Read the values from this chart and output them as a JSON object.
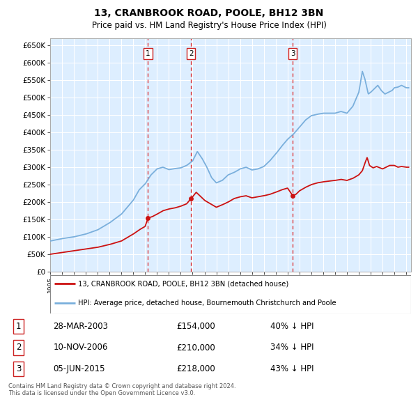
{
  "title": "13, CRANBROOK ROAD, POOLE, BH12 3BN",
  "subtitle": "Price paid vs. HM Land Registry's House Price Index (HPI)",
  "plot_background": "#ddeeff",
  "grid_color": "#ffffff",
  "ylim": [
    0,
    670000
  ],
  "yticks": [
    0,
    50000,
    100000,
    150000,
    200000,
    250000,
    300000,
    350000,
    400000,
    450000,
    500000,
    550000,
    600000,
    650000
  ],
  "ytick_labels": [
    "£0",
    "£50K",
    "£100K",
    "£150K",
    "£200K",
    "£250K",
    "£300K",
    "£350K",
    "£400K",
    "£450K",
    "£500K",
    "£550K",
    "£600K",
    "£650K"
  ],
  "xlim_start": 1995.0,
  "xlim_end": 2025.4,
  "sales": [
    {
      "date_decimal": 2003.24,
      "price": 154000,
      "label": "1"
    },
    {
      "date_decimal": 2006.86,
      "price": 210000,
      "label": "2"
    },
    {
      "date_decimal": 2015.43,
      "price": 218000,
      "label": "3"
    }
  ],
  "hpi_anchors": [
    [
      1995.0,
      88000
    ],
    [
      1996.0,
      95000
    ],
    [
      1997.0,
      100000
    ],
    [
      1998.0,
      108000
    ],
    [
      1999.0,
      120000
    ],
    [
      2000.0,
      140000
    ],
    [
      2001.0,
      165000
    ],
    [
      2002.0,
      205000
    ],
    [
      2002.5,
      235000
    ],
    [
      2003.0,
      252000
    ],
    [
      2003.5,
      278000
    ],
    [
      2004.0,
      295000
    ],
    [
      2004.5,
      300000
    ],
    [
      2005.0,
      293000
    ],
    [
      2005.5,
      296000
    ],
    [
      2006.0,
      298000
    ],
    [
      2006.5,
      305000
    ],
    [
      2007.0,
      318000
    ],
    [
      2007.4,
      345000
    ],
    [
      2007.8,
      325000
    ],
    [
      2008.2,
      300000
    ],
    [
      2008.6,
      270000
    ],
    [
      2009.0,
      255000
    ],
    [
      2009.5,
      262000
    ],
    [
      2010.0,
      278000
    ],
    [
      2010.5,
      285000
    ],
    [
      2011.0,
      295000
    ],
    [
      2011.5,
      300000
    ],
    [
      2012.0,
      292000
    ],
    [
      2012.5,
      295000
    ],
    [
      2013.0,
      302000
    ],
    [
      2013.5,
      318000
    ],
    [
      2014.0,
      338000
    ],
    [
      2014.5,
      360000
    ],
    [
      2015.0,
      380000
    ],
    [
      2015.5,
      395000
    ],
    [
      2016.0,
      415000
    ],
    [
      2016.5,
      435000
    ],
    [
      2017.0,
      448000
    ],
    [
      2017.5,
      452000
    ],
    [
      2018.0,
      455000
    ],
    [
      2018.5,
      455000
    ],
    [
      2019.0,
      455000
    ],
    [
      2019.5,
      460000
    ],
    [
      2020.0,
      455000
    ],
    [
      2020.5,
      475000
    ],
    [
      2021.0,
      515000
    ],
    [
      2021.3,
      575000
    ],
    [
      2021.5,
      555000
    ],
    [
      2021.8,
      510000
    ],
    [
      2022.0,
      515000
    ],
    [
      2022.3,
      525000
    ],
    [
      2022.6,
      535000
    ],
    [
      2022.9,
      520000
    ],
    [
      2023.2,
      510000
    ],
    [
      2023.5,
      515000
    ],
    [
      2023.8,
      520000
    ],
    [
      2024.0,
      528000
    ],
    [
      2024.3,
      530000
    ],
    [
      2024.6,
      535000
    ],
    [
      2025.0,
      528000
    ]
  ],
  "prop_anchors": [
    [
      1995.0,
      50000
    ],
    [
      1996.0,
      55000
    ],
    [
      1997.0,
      60000
    ],
    [
      1998.0,
      65000
    ],
    [
      1999.0,
      70000
    ],
    [
      2000.0,
      78000
    ],
    [
      2001.0,
      88000
    ],
    [
      2001.5,
      98000
    ],
    [
      2002.0,
      108000
    ],
    [
      2002.5,
      120000
    ],
    [
      2003.0,
      130000
    ],
    [
      2003.24,
      154000
    ],
    [
      2003.6,
      158000
    ],
    [
      2004.0,
      165000
    ],
    [
      2004.5,
      175000
    ],
    [
      2005.0,
      180000
    ],
    [
      2005.5,
      183000
    ],
    [
      2006.0,
      188000
    ],
    [
      2006.5,
      195000
    ],
    [
      2006.86,
      210000
    ],
    [
      2007.0,
      215000
    ],
    [
      2007.3,
      228000
    ],
    [
      2007.7,
      215000
    ],
    [
      2008.0,
      205000
    ],
    [
      2008.5,
      195000
    ],
    [
      2009.0,
      185000
    ],
    [
      2009.5,
      192000
    ],
    [
      2010.0,
      200000
    ],
    [
      2010.5,
      210000
    ],
    [
      2011.0,
      215000
    ],
    [
      2011.5,
      218000
    ],
    [
      2012.0,
      212000
    ],
    [
      2012.5,
      215000
    ],
    [
      2013.0,
      218000
    ],
    [
      2013.5,
      222000
    ],
    [
      2014.0,
      228000
    ],
    [
      2014.5,
      235000
    ],
    [
      2015.0,
      240000
    ],
    [
      2015.43,
      218000
    ],
    [
      2015.7,
      222000
    ],
    [
      2016.0,
      232000
    ],
    [
      2016.5,
      242000
    ],
    [
      2017.0,
      250000
    ],
    [
      2017.5,
      255000
    ],
    [
      2018.0,
      258000
    ],
    [
      2018.5,
      260000
    ],
    [
      2019.0,
      262000
    ],
    [
      2019.5,
      265000
    ],
    [
      2020.0,
      262000
    ],
    [
      2020.5,
      268000
    ],
    [
      2021.0,
      278000
    ],
    [
      2021.3,
      290000
    ],
    [
      2021.5,
      310000
    ],
    [
      2021.7,
      328000
    ],
    [
      2021.9,
      305000
    ],
    [
      2022.2,
      298000
    ],
    [
      2022.5,
      302000
    ],
    [
      2022.8,
      298000
    ],
    [
      2023.0,
      295000
    ],
    [
      2023.3,
      300000
    ],
    [
      2023.6,
      305000
    ],
    [
      2024.0,
      305000
    ],
    [
      2024.3,
      300000
    ],
    [
      2024.6,
      302000
    ],
    [
      2025.0,
      300000
    ]
  ],
  "hpi_color": "#7aafdc",
  "prop_color": "#cc1111",
  "vline_color": "#dd2222",
  "marker_color": "#cc1111",
  "label_box_edge": "#cc2222",
  "legend_entries": [
    {
      "label": "13, CRANBROOK ROAD, POOLE, BH12 3BN (detached house)",
      "color": "#cc1111"
    },
    {
      "label": "HPI: Average price, detached house, Bournemouth Christchurch and Poole",
      "color": "#7aafdc"
    }
  ],
  "table_rows": [
    {
      "num": "1",
      "date": "28-MAR-2003",
      "price": "£154,000",
      "hpi": "40% ↓ HPI"
    },
    {
      "num": "2",
      "date": "10-NOV-2006",
      "price": "£210,000",
      "hpi": "34% ↓ HPI"
    },
    {
      "num": "3",
      "date": "05-JUN-2015",
      "price": "£218,000",
      "hpi": "43% ↓ HPI"
    }
  ],
  "footer": "Contains HM Land Registry data © Crown copyright and database right 2024.\nThis data is licensed under the Open Government Licence v3.0."
}
